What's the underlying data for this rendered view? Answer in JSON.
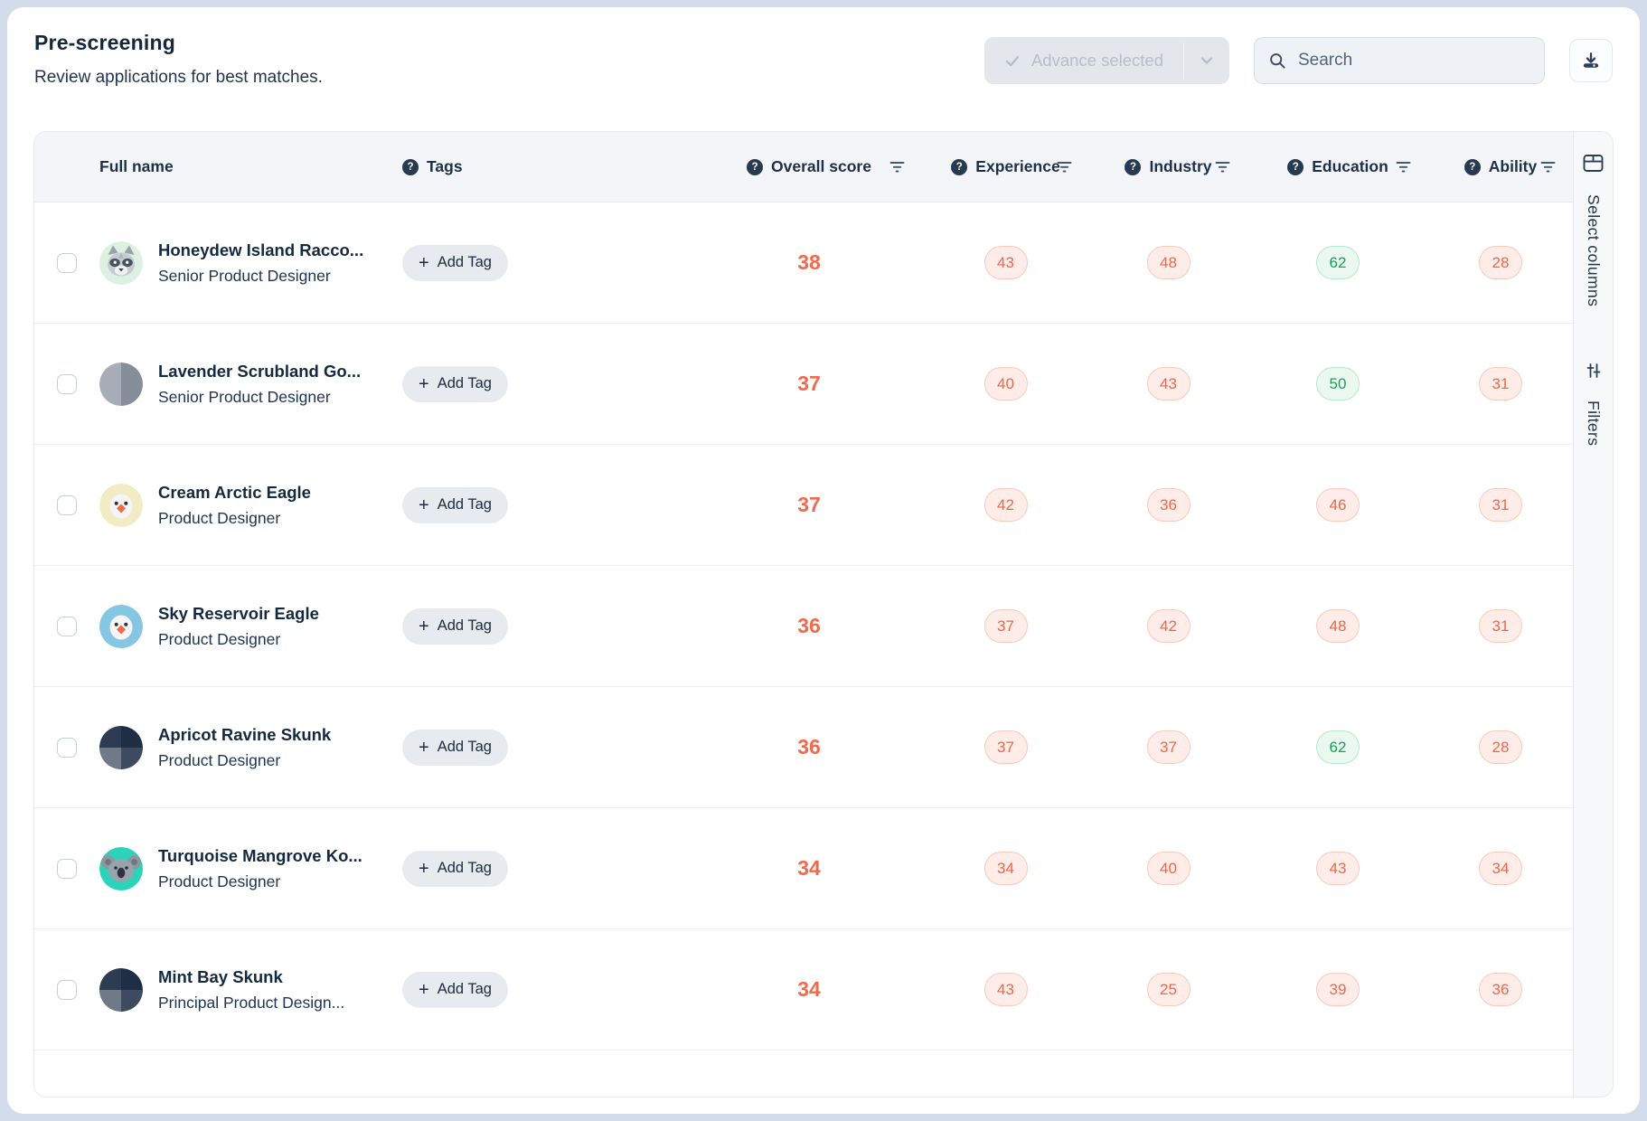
{
  "header": {
    "title": "Pre-screening",
    "subtitle": "Review applications for best matches."
  },
  "toolbar": {
    "advance_label": "Advance selected",
    "search_placeholder": "Search"
  },
  "icons": {
    "help": "?",
    "plus": "+",
    "check": "check-mark",
    "chevron": "chevron-down",
    "search": "magnifier",
    "download": "download-tray",
    "filter": "funnel-lines",
    "select_columns": "table-columns",
    "filters": "sliders"
  },
  "colors": {
    "page_background": "#d2dcea",
    "accent_orange": "#f2694c",
    "badge_low_bg": "#fdece7",
    "badge_low_border": "#f8cbbc",
    "badge_low_text": "#ee6849",
    "badge_high_bg": "#eaf8f0",
    "badge_high_border": "#b5e9cd",
    "badge_high_text": "#15a35a",
    "navy_text": "#14273d"
  },
  "rail": {
    "select_columns_label": "Select columns",
    "filters_label": "Filters"
  },
  "table": {
    "add_tag_label": "Add Tag",
    "columns": [
      {
        "key": "full_name",
        "label": "Full name",
        "help": false,
        "filter": false
      },
      {
        "key": "tags",
        "label": "Tags",
        "help": true,
        "filter": false
      },
      {
        "key": "overall_score",
        "label": "Overall score",
        "help": true,
        "filter": true
      },
      {
        "key": "experience",
        "label": "Experience",
        "help": true,
        "filter": true
      },
      {
        "key": "industry",
        "label": "Industry",
        "help": true,
        "filter": true
      },
      {
        "key": "education",
        "label": "Education",
        "help": true,
        "filter": true
      },
      {
        "key": "ability",
        "label": "Ability",
        "help": true,
        "filter": true
      }
    ],
    "rows": [
      {
        "name": "Honeydew Island Racco...",
        "role": "Senior Product Designer",
        "avatar": {
          "type": "raccoon",
          "bg": "#ddf1e2"
        },
        "scores": {
          "overall": 38,
          "experience": {
            "value": 43,
            "tone": "low"
          },
          "industry": {
            "value": 48,
            "tone": "low"
          },
          "education": {
            "value": 62,
            "tone": "high"
          },
          "ability": {
            "value": 28,
            "tone": "low"
          }
        }
      },
      {
        "name": "Lavender Scrubland Go...",
        "role": "Senior Product Designer",
        "avatar": {
          "type": "split",
          "bg": "#9aa2ac"
        },
        "scores": {
          "overall": 37,
          "experience": {
            "value": 40,
            "tone": "low"
          },
          "industry": {
            "value": 43,
            "tone": "low"
          },
          "education": {
            "value": 50,
            "tone": "high"
          },
          "ability": {
            "value": 31,
            "tone": "low"
          }
        }
      },
      {
        "name": "Cream Arctic Eagle",
        "role": "Product Designer",
        "avatar": {
          "type": "eagle",
          "bg": "#f2ecc6"
        },
        "scores": {
          "overall": 37,
          "experience": {
            "value": 42,
            "tone": "low"
          },
          "industry": {
            "value": 36,
            "tone": "low"
          },
          "education": {
            "value": 46,
            "tone": "low"
          },
          "ability": {
            "value": 31,
            "tone": "low"
          }
        }
      },
      {
        "name": "Sky Reservoir Eagle",
        "role": "Product Designer",
        "avatar": {
          "type": "eagle",
          "bg": "#85c6e2"
        },
        "scores": {
          "overall": 36,
          "experience": {
            "value": 37,
            "tone": "low"
          },
          "industry": {
            "value": 42,
            "tone": "low"
          },
          "education": {
            "value": 48,
            "tone": "low"
          },
          "ability": {
            "value": 31,
            "tone": "low"
          }
        }
      },
      {
        "name": "Apricot Ravine Skunk",
        "role": "Product Designer",
        "avatar": {
          "type": "quad",
          "bg": "#1f2d45"
        },
        "scores": {
          "overall": 36,
          "experience": {
            "value": 37,
            "tone": "low"
          },
          "industry": {
            "value": 37,
            "tone": "low"
          },
          "education": {
            "value": 62,
            "tone": "high"
          },
          "ability": {
            "value": 28,
            "tone": "low"
          }
        }
      },
      {
        "name": "Turquoise Mangrove Ko...",
        "role": "Product Designer",
        "avatar": {
          "type": "koala",
          "bg": "#2bd3b8"
        },
        "scores": {
          "overall": 34,
          "experience": {
            "value": 34,
            "tone": "low"
          },
          "industry": {
            "value": 40,
            "tone": "low"
          },
          "education": {
            "value": 43,
            "tone": "low"
          },
          "ability": {
            "value": 34,
            "tone": "low"
          }
        }
      },
      {
        "name": "Mint Bay Skunk",
        "role": "Principal Product Design...",
        "avatar": {
          "type": "quad",
          "bg": "#1f2d45"
        },
        "scores": {
          "overall": 34,
          "experience": {
            "value": 43,
            "tone": "low"
          },
          "industry": {
            "value": 25,
            "tone": "low"
          },
          "education": {
            "value": 39,
            "tone": "low"
          },
          "ability": {
            "value": 36,
            "tone": "low"
          }
        }
      }
    ]
  }
}
